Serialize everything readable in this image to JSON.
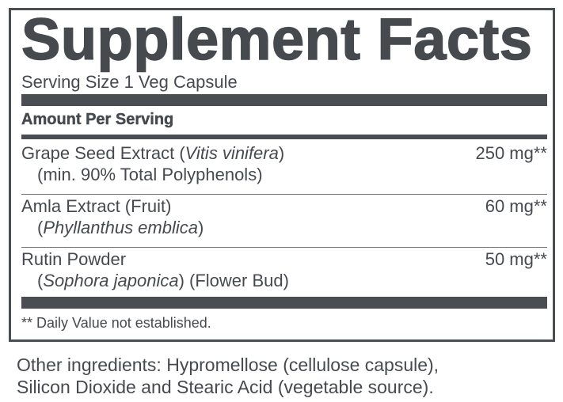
{
  "label": {
    "title": "Supplement Facts",
    "serving_size": "Serving Size 1 Veg Capsule",
    "amount_header": "Amount Per Serving",
    "ingredients": [
      {
        "name": "Grape Seed Extract (",
        "name_italic": "Vitis vinifera",
        "name_end": ")",
        "sub_pre": "(min. 90% Total Polyphenols)",
        "sub_italic": "",
        "sub_post": "",
        "amount": "250 mg**"
      },
      {
        "name": "Amla Extract (Fruit)",
        "name_italic": "",
        "name_end": "",
        "sub_pre": "(",
        "sub_italic": "Phyllanthus emblica",
        "sub_post": ")",
        "amount": "60 mg**"
      },
      {
        "name": "Rutin Powder",
        "name_italic": "",
        "name_end": "",
        "sub_pre": "(",
        "sub_italic": "Sophora japonica",
        "sub_post": ") (Flower Bud)",
        "amount": "50 mg**"
      }
    ],
    "footnote": "** Daily Value not established."
  },
  "other_ingredients": {
    "line1": "Other ingredients: Hypromellose (cellulose capsule),",
    "line2": "Silicon Dioxide and Stearic Acid (vegetable source)."
  },
  "colors": {
    "text": "#464a4f",
    "bars": "#4a4e53"
  }
}
